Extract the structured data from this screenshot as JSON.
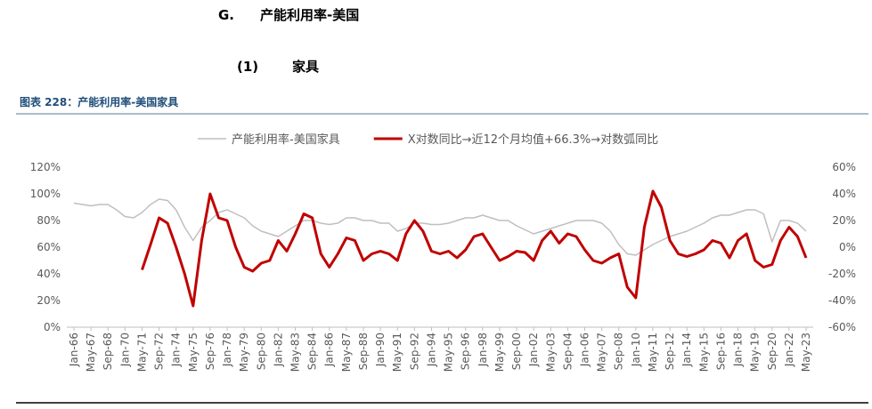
{
  "header": {
    "number": "G.",
    "title": "产能利用率-美国"
  },
  "subheader": {
    "number": "(1)",
    "title": "家具"
  },
  "chart_data": {
    "type": "line",
    "title": "图表 228：产能利用率-美国家具",
    "categories": [
      "Jan-66",
      null,
      "May-67",
      null,
      "Sep-68",
      null,
      "Jan-70",
      null,
      "May-71",
      null,
      "Sep-72",
      null,
      "Jan-74",
      null,
      "May-75",
      null,
      "Sep-76",
      null,
      "Jan-78",
      null,
      "May-79",
      null,
      "Sep-80",
      null,
      "Jan-82",
      null,
      "May-83",
      null,
      "Sep-84",
      null,
      "Jan-86",
      null,
      "May-87",
      null,
      "Sep-88",
      null,
      "Jan-90",
      null,
      "May-91",
      null,
      "Sep-92",
      null,
      "Jan-94",
      null,
      "May-95",
      null,
      "Sep-96",
      null,
      "Jan-98",
      null,
      "May-99",
      null,
      "Sep-00",
      null,
      "Jan-02",
      null,
      "May-03",
      null,
      "Sep-04",
      null,
      "Jan-06",
      null,
      "May-07",
      null,
      "Sep-08",
      null,
      "Jan-10",
      null,
      "May-11",
      null,
      "Sep-12",
      null,
      "Jan-14",
      null,
      "May-15",
      null,
      "Sep-16",
      null,
      "Jan-18",
      null,
      "May-19",
      null,
      "Sep-20",
      null,
      "Jan-22",
      null,
      "May-23"
    ],
    "series": [
      {
        "name": "产能利用率-美国家具",
        "color": "#bfbfbf",
        "axis": "y",
        "values": [
          93,
          92,
          91,
          92,
          92,
          88,
          83,
          82,
          86,
          92,
          96,
          95,
          88,
          75,
          65,
          75,
          80,
          86,
          88,
          85,
          82,
          76,
          72,
          70,
          68,
          72,
          76,
          80,
          80,
          78,
          77,
          78,
          82,
          82,
          80,
          80,
          78,
          78,
          72,
          74,
          78,
          78,
          77,
          77,
          78,
          80,
          82,
          82,
          84,
          82,
          80,
          80,
          76,
          73,
          70,
          72,
          74,
          76,
          78,
          80,
          80,
          80,
          78,
          72,
          62,
          55,
          54,
          58,
          62,
          65,
          68,
          70,
          72,
          75,
          78,
          82,
          84,
          84,
          86,
          88,
          88,
          85,
          64,
          80,
          80,
          78,
          72
        ]
      },
      {
        "name": "X对数同比→近12个月均值+66.3%→对数弧同比",
        "color": "#c00000",
        "axis": "y2",
        "values": [
          null,
          null,
          null,
          null,
          null,
          null,
          null,
          null,
          -17,
          2,
          22,
          18,
          0,
          -20,
          -44,
          5,
          40,
          22,
          20,
          0,
          -15,
          -18,
          -12,
          -10,
          5,
          -3,
          10,
          25,
          22,
          -5,
          -15,
          -5,
          7,
          5,
          -10,
          -5,
          -3,
          -5,
          -10,
          10,
          20,
          12,
          -3,
          -5,
          -3,
          -8,
          -2,
          8,
          10,
          0,
          -10,
          -7,
          -3,
          -4,
          -10,
          5,
          12,
          3,
          10,
          8,
          -2,
          -10,
          -12,
          -8,
          -5,
          -30,
          -38,
          15,
          42,
          30,
          5,
          -5,
          -7,
          -5,
          -2,
          5,
          3,
          -8,
          5,
          10,
          -10,
          -15,
          -13,
          5,
          15,
          8,
          -8
        ]
      }
    ],
    "ylim": [
      0,
      120
    ],
    "yticks": [
      {
        "value": 0,
        "label": "0%"
      },
      {
        "value": 20,
        "label": "20%"
      },
      {
        "value": 40,
        "label": "40%"
      },
      {
        "value": 60,
        "label": "60%"
      },
      {
        "value": 80,
        "label": "80%"
      },
      {
        "value": 100,
        "label": "100%"
      },
      {
        "value": 120,
        "label": "120%"
      }
    ],
    "y2lim": [
      -60,
      60
    ],
    "y2ticks": [
      {
        "value": -60,
        "label": "-60%"
      },
      {
        "value": -40,
        "label": "-40%"
      },
      {
        "value": -20,
        "label": "-20%"
      },
      {
        "value": 0,
        "label": "0%"
      },
      {
        "value": 20,
        "label": "20%"
      },
      {
        "value": 40,
        "label": "40%"
      },
      {
        "value": 60,
        "label": "60%"
      }
    ],
    "legend": "top",
    "grid": false
  }
}
